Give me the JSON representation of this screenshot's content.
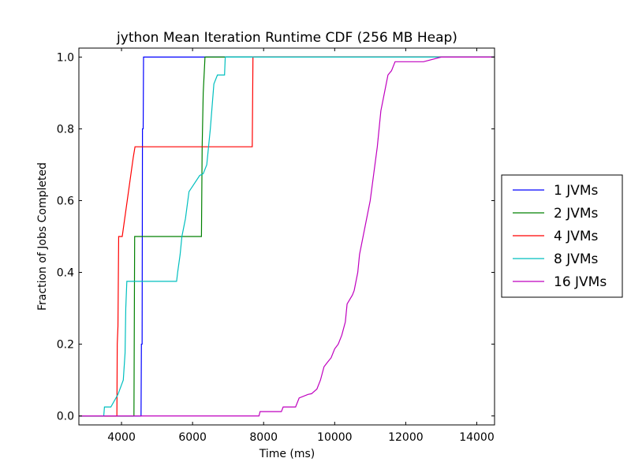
{
  "chart_data": {
    "type": "line",
    "title": "jython Mean Iteration Runtime CDF (256 MB Heap)",
    "xlabel": "Time (ms)",
    "ylabel": "Fraction of Jobs Completed",
    "xlim": [
      2800,
      14500
    ],
    "ylim": [
      -0.025,
      1.025
    ],
    "xticks": [
      4000,
      6000,
      8000,
      10000,
      12000,
      14000
    ],
    "yticks": [
      0.0,
      0.2,
      0.4,
      0.6,
      0.8,
      1.0
    ],
    "xtick_labels": [
      "4000",
      "6000",
      "8000",
      "10000",
      "12000",
      "14000"
    ],
    "ytick_labels": [
      "0.0",
      "0.2",
      "0.4",
      "0.6",
      "0.8",
      "1.0"
    ],
    "grid": false,
    "legend_position": "right-outside",
    "series": [
      {
        "name": "1 JVMs",
        "color": "#0000ff",
        "x": [
          2800,
          4550,
          4560,
          4580,
          4590,
          4610,
          4620,
          14500
        ],
        "y": [
          0.0,
          0.0,
          0.2,
          0.2,
          0.8,
          0.8,
          1.0,
          1.0
        ]
      },
      {
        "name": "2 JVMs",
        "color": "#008000",
        "x": [
          2800,
          4350,
          4370,
          6250,
          6270,
          6300,
          6350,
          14500
        ],
        "y": [
          0.0,
          0.0,
          0.5,
          0.5,
          0.75,
          0.9,
          1.0,
          1.0
        ]
      },
      {
        "name": "4 JVMs",
        "color": "#ff0000",
        "x": [
          2800,
          3870,
          3880,
          3900,
          3920,
          4020,
          4330,
          4380,
          7680,
          7700,
          14500
        ],
        "y": [
          0.0,
          0.0,
          0.2,
          0.25,
          0.5,
          0.5,
          0.72,
          0.75,
          0.75,
          1.0,
          1.0
        ],
        "line_steps": true
      },
      {
        "name": "8 JVMs",
        "color": "#00bfbf",
        "x": [
          2800,
          3500,
          3520,
          3700,
          3900,
          4050,
          4100,
          4120,
          4150,
          5550,
          5580,
          5650,
          5700,
          5800,
          5900,
          6000,
          6200,
          6300,
          6400,
          6500,
          6600,
          6700,
          6900,
          6920,
          14500
        ],
        "y": [
          0.0,
          0.0,
          0.025,
          0.025,
          0.06,
          0.1,
          0.175,
          0.3,
          0.375,
          0.375,
          0.4,
          0.45,
          0.5,
          0.55,
          0.625,
          0.64,
          0.67,
          0.675,
          0.7,
          0.8,
          0.925,
          0.95,
          0.95,
          1.0,
          1.0
        ]
      },
      {
        "name": "16 JVMs",
        "color": "#bf00bf",
        "x": [
          2800,
          7870,
          7900,
          8500,
          8550,
          8900,
          9000,
          9250,
          9350,
          9500,
          9600,
          9700,
          9800,
          9900,
          10000,
          10100,
          10200,
          10300,
          10350,
          10500,
          10550,
          10650,
          10700,
          10800,
          10900,
          11000,
          11100,
          11200,
          11300,
          11400,
          11500,
          11600,
          11700,
          11800,
          12500,
          13000,
          13500,
          14500
        ],
        "y": [
          0.0,
          0.0,
          0.012,
          0.012,
          0.025,
          0.025,
          0.05,
          0.06,
          0.062,
          0.075,
          0.1,
          0.137,
          0.15,
          0.162,
          0.187,
          0.2,
          0.225,
          0.262,
          0.312,
          0.337,
          0.35,
          0.4,
          0.45,
          0.5,
          0.55,
          0.6,
          0.675,
          0.75,
          0.85,
          0.9,
          0.95,
          0.962,
          0.987,
          0.987,
          0.987,
          1.0,
          1.0,
          1.0
        ]
      }
    ]
  }
}
